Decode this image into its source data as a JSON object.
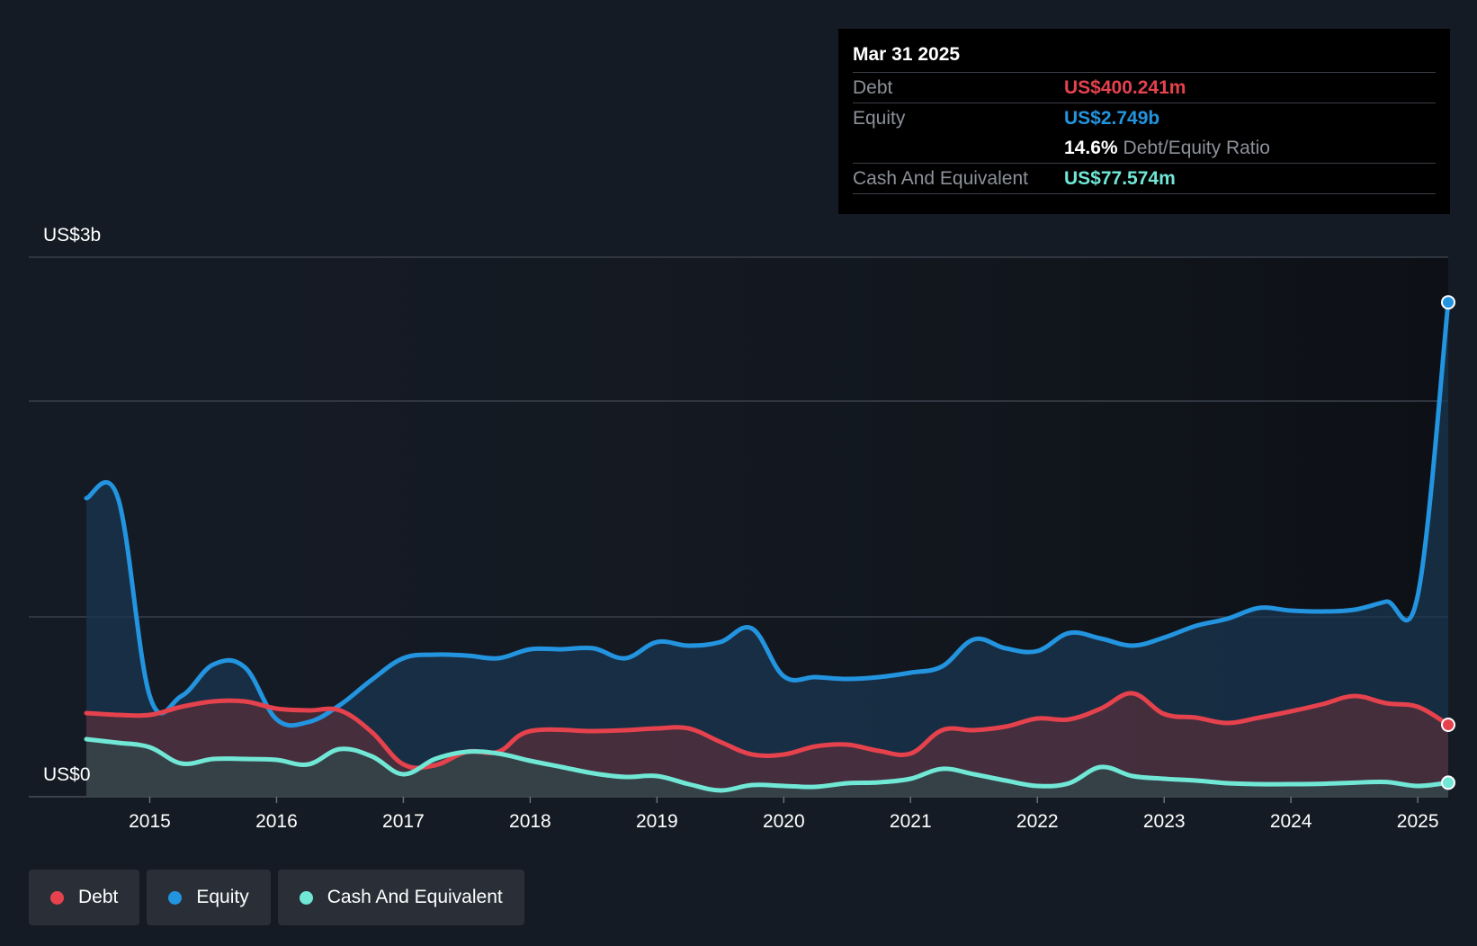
{
  "tooltip": {
    "date": "Mar 31 2025",
    "debt_label": "Debt",
    "debt_value": "US$400.241m",
    "equity_label": "Equity",
    "equity_value": "US$2.749b",
    "ratio_value": "14.6%",
    "ratio_label": "Debt/Equity Ratio",
    "cash_label": "Cash And Equivalent",
    "cash_value": "US$77.574m"
  },
  "axis": {
    "y_top_label": "US$3b",
    "y_bottom_label": "US$0"
  },
  "legend": [
    {
      "label": "Debt",
      "color": "#e5424d"
    },
    {
      "label": "Equity",
      "color": "#2394df"
    },
    {
      "label": "Cash And Equivalent",
      "color": "#71e7d6"
    }
  ],
  "chart_data": {
    "type": "line",
    "ylim": [
      0,
      2.8
    ],
    "y_unit": "US$ billions",
    "x_ticks": [
      "2015",
      "2016",
      "2017",
      "2018",
      "2019",
      "2020",
      "2021",
      "2022",
      "2023",
      "2024",
      "2025"
    ],
    "series": [
      {
        "name": "Debt",
        "color": "#e5424d",
        "points": [
          [
            2014.5,
            0.465
          ],
          [
            2014.75,
            0.455
          ],
          [
            2015.0,
            0.455
          ],
          [
            2015.25,
            0.5
          ],
          [
            2015.5,
            0.53
          ],
          [
            2015.75,
            0.53
          ],
          [
            2016.0,
            0.49
          ],
          [
            2016.25,
            0.48
          ],
          [
            2016.5,
            0.48
          ],
          [
            2016.75,
            0.36
          ],
          [
            2017.0,
            0.18
          ],
          [
            2017.25,
            0.175
          ],
          [
            2017.5,
            0.25
          ],
          [
            2017.75,
            0.25
          ],
          [
            2018.0,
            0.365
          ],
          [
            2018.5,
            0.365
          ],
          [
            2018.75,
            0.37
          ],
          [
            2019.0,
            0.38
          ],
          [
            2019.25,
            0.38
          ],
          [
            2019.5,
            0.305
          ],
          [
            2019.75,
            0.235
          ],
          [
            2020.0,
            0.235
          ],
          [
            2020.25,
            0.28
          ],
          [
            2020.5,
            0.29
          ],
          [
            2020.75,
            0.255
          ],
          [
            2021.0,
            0.24
          ],
          [
            2021.25,
            0.37
          ],
          [
            2021.5,
            0.37
          ],
          [
            2021.75,
            0.39
          ],
          [
            2022.0,
            0.435
          ],
          [
            2022.25,
            0.43
          ],
          [
            2022.5,
            0.49
          ],
          [
            2022.75,
            0.575
          ],
          [
            2023.0,
            0.46
          ],
          [
            2023.25,
            0.44
          ],
          [
            2023.5,
            0.41
          ],
          [
            2023.75,
            0.44
          ],
          [
            2024.0,
            0.475
          ],
          [
            2024.25,
            0.515
          ],
          [
            2024.5,
            0.56
          ],
          [
            2024.75,
            0.52
          ],
          [
            2025.0,
            0.5
          ],
          [
            2025.24,
            0.4
          ]
        ]
      },
      {
        "name": "Equity",
        "color": "#2394df",
        "points": [
          [
            2014.5,
            1.66
          ],
          [
            2014.75,
            1.66
          ],
          [
            2015.0,
            0.56
          ],
          [
            2015.25,
            0.56
          ],
          [
            2015.5,
            0.735
          ],
          [
            2015.75,
            0.72
          ],
          [
            2016.0,
            0.43
          ],
          [
            2016.25,
            0.415
          ],
          [
            2016.5,
            0.51
          ],
          [
            2016.75,
            0.65
          ],
          [
            2017.0,
            0.77
          ],
          [
            2017.25,
            0.79
          ],
          [
            2017.5,
            0.785
          ],
          [
            2017.75,
            0.77
          ],
          [
            2018.0,
            0.82
          ],
          [
            2018.25,
            0.82
          ],
          [
            2018.5,
            0.825
          ],
          [
            2018.75,
            0.77
          ],
          [
            2019.0,
            0.86
          ],
          [
            2019.25,
            0.84
          ],
          [
            2019.5,
            0.86
          ],
          [
            2019.75,
            0.935
          ],
          [
            2020.0,
            0.67
          ],
          [
            2020.25,
            0.665
          ],
          [
            2020.5,
            0.655
          ],
          [
            2020.75,
            0.665
          ],
          [
            2021.0,
            0.69
          ],
          [
            2021.25,
            0.725
          ],
          [
            2021.5,
            0.875
          ],
          [
            2021.75,
            0.825
          ],
          [
            2022.0,
            0.81
          ],
          [
            2022.25,
            0.91
          ],
          [
            2022.5,
            0.88
          ],
          [
            2022.75,
            0.84
          ],
          [
            2023.0,
            0.885
          ],
          [
            2023.25,
            0.95
          ],
          [
            2023.5,
            0.99
          ],
          [
            2023.75,
            1.05
          ],
          [
            2024.0,
            1.035
          ],
          [
            2024.25,
            1.03
          ],
          [
            2024.5,
            1.04
          ],
          [
            2024.75,
            1.085
          ],
          [
            2025.0,
            1.12
          ],
          [
            2025.24,
            2.749
          ]
        ]
      },
      {
        "name": "Cash And Equivalent",
        "color": "#71e7d6",
        "points": [
          [
            2014.5,
            0.32
          ],
          [
            2014.75,
            0.3
          ],
          [
            2015.0,
            0.275
          ],
          [
            2015.25,
            0.185
          ],
          [
            2015.5,
            0.21
          ],
          [
            2015.75,
            0.21
          ],
          [
            2016.0,
            0.205
          ],
          [
            2016.25,
            0.18
          ],
          [
            2016.5,
            0.265
          ],
          [
            2016.75,
            0.225
          ],
          [
            2017.0,
            0.125
          ],
          [
            2017.25,
            0.21
          ],
          [
            2017.5,
            0.25
          ],
          [
            2017.75,
            0.24
          ],
          [
            2018.0,
            0.2
          ],
          [
            2018.25,
            0.165
          ],
          [
            2018.5,
            0.13
          ],
          [
            2018.75,
            0.11
          ],
          [
            2019.0,
            0.115
          ],
          [
            2019.25,
            0.07
          ],
          [
            2019.5,
            0.035
          ],
          [
            2019.75,
            0.065
          ],
          [
            2020.0,
            0.06
          ],
          [
            2020.25,
            0.055
          ],
          [
            2020.5,
            0.075
          ],
          [
            2020.75,
            0.08
          ],
          [
            2021.0,
            0.1
          ],
          [
            2021.25,
            0.155
          ],
          [
            2021.5,
            0.125
          ],
          [
            2021.75,
            0.09
          ],
          [
            2022.0,
            0.06
          ],
          [
            2022.25,
            0.075
          ],
          [
            2022.5,
            0.165
          ],
          [
            2022.75,
            0.115
          ],
          [
            2023.0,
            0.1
          ],
          [
            2023.25,
            0.09
          ],
          [
            2023.5,
            0.075
          ],
          [
            2023.75,
            0.07
          ],
          [
            2024.0,
            0.07
          ],
          [
            2024.25,
            0.072
          ],
          [
            2024.5,
            0.078
          ],
          [
            2024.75,
            0.082
          ],
          [
            2025.0,
            0.06
          ],
          [
            2025.24,
            0.078
          ]
        ]
      }
    ]
  }
}
